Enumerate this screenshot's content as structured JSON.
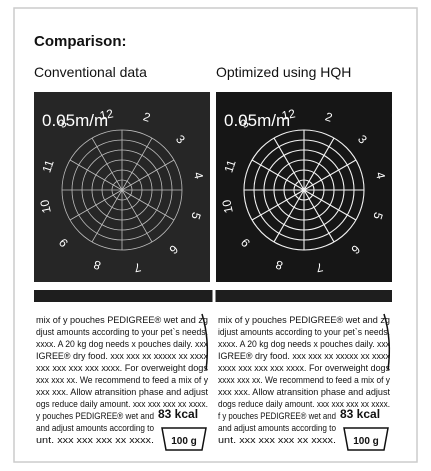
{
  "header": {
    "title": "Comparison:"
  },
  "panels": [
    {
      "label": "Conventional data",
      "dial_label": "0.05m/m",
      "dial_numbers": [
        "12",
        "2",
        "3",
        "4",
        "5",
        "6",
        "7",
        "8",
        "9",
        "10",
        "11",
        "3"
      ],
      "text_lines": [
        "mix of y pouches PEDIGREE® wet and zg",
        "djust amounts according to your pet`s needs.",
        "xxxx. A 20 kg dog needs x pouches daily. xxx",
        "IGREE® dry food. xxx xxx xx xxxxx xx xxxx",
        "xxx xxx xxx xxx xxxx. For overweight dogs",
        "xxx xxx xx. We recommend to feed a mix of y",
        "xxx xxx. Allow atransition phase and adjust",
        "ogs reduce daily amount. xxx xxx xxx xx xxxx.",
        "y pouches PEDIGREE® wet and",
        "and adjust amounts according to",
        "unt. xxx xxx xxx xx xxxx."
      ],
      "kcal": "83 kcal",
      "weight": "100 g"
    },
    {
      "label": "Optimized using HQH",
      "dial_label": "0.05m/m",
      "dial_numbers": [
        "12",
        "2",
        "3",
        "4",
        "5",
        "6",
        "7",
        "8",
        "9",
        "10",
        "11",
        "3"
      ],
      "text_lines": [
        "mix of y pouches PEDIGREE® wet and zg",
        "idjust amounts according to your pet`s needs.",
        "xxxx. A 20 kg dog needs x pouches daily. xxx",
        "IGREE® dry food. xxx xxx xx xxxxx xx xxxx",
        "xxxx xxx xxx xxx xxxx. For overweight dogs",
        "xxxx xxx xx. We recommend to feed a mix of y",
        "xxx xxx. Allow atransition phase and adjust",
        "dogs reduce daily amount. xxx xxx xxx xx xxxx.",
        "f y pouches PEDIGREE® wet and",
        "and adjust amounts according to",
        "unt. xxx xxx xxx xx xxxx."
      ],
      "kcal": "83 kcal",
      "weight": "100 g"
    }
  ]
}
